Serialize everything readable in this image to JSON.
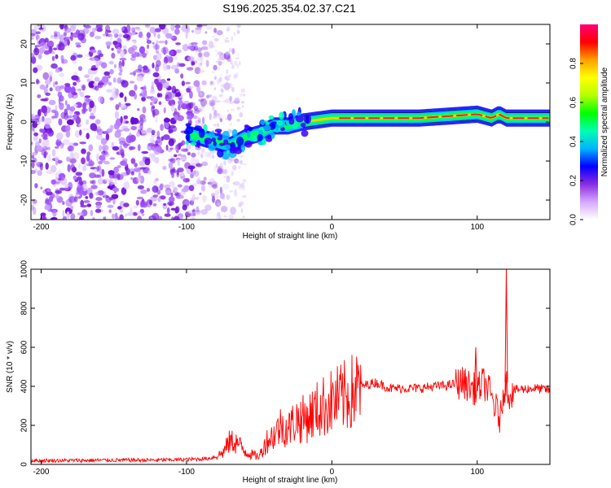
{
  "title": "S196.2025.354.02.37.C21",
  "chart_data": [
    {
      "type": "heatmap",
      "title": "S196.2025.354.02.37.C21",
      "xlabel": "Height of straight line (km)",
      "ylabel": "Frequency (Hz)",
      "xlim": [
        -207,
        150
      ],
      "ylim": [
        -25,
        25
      ],
      "xticks": [
        -200,
        -100,
        0,
        100
      ],
      "yticks": [
        -20,
        -10,
        0,
        10,
        20
      ],
      "colorbar": {
        "label": "Normalized spectral amplitude",
        "range": [
          0,
          1
        ],
        "ticks": [
          "0.0",
          "0.2",
          "0.4",
          "0.6",
          "0.8"
        ],
        "colors": [
          "#ffffff",
          "#d5a8ff",
          "#8a2be2",
          "#0000ff",
          "#00b4ff",
          "#00ffb0",
          "#00ff00",
          "#b4ff00",
          "#ffff00",
          "#ffa000",
          "#ff0000",
          "#ff0078"
        ]
      },
      "signal_track": {
        "x": [
          -100,
          -90,
          -80,
          -70,
          -60,
          -50,
          -40,
          -30,
          -20,
          -10,
          0,
          20,
          40,
          60,
          80,
          100,
          110,
          115,
          120,
          150
        ],
        "y": [
          -3,
          -4,
          -5,
          -6,
          -4,
          -3,
          -1,
          -1,
          0,
          0.5,
          1,
          1,
          1,
          1,
          1.5,
          2,
          1,
          2,
          1,
          1
        ]
      }
    },
    {
      "type": "line",
      "xlabel": "Height of straight line (km)",
      "ylabel": "SNR (10 * v/v)",
      "xlim": [
        -207,
        150
      ],
      "ylim": [
        0,
        1000
      ],
      "xticks": [
        -200,
        -100,
        0,
        100
      ],
      "yticks": [
        0,
        200,
        400,
        600,
        800,
        1000
      ],
      "series": [
        {
          "name": "SNR",
          "color": "#ff0000",
          "x": [
            -207,
            -180,
            -150,
            -120,
            -100,
            -85,
            -80,
            -75,
            -70,
            -65,
            -60,
            -55,
            -50,
            -45,
            -40,
            -35,
            -30,
            -25,
            -20,
            -15,
            -10,
            -5,
            0,
            10,
            20,
            30,
            40,
            50,
            60,
            70,
            80,
            90,
            95,
            100,
            104,
            108,
            112,
            116,
            118,
            120,
            122,
            125,
            130,
            140,
            150
          ],
          "y": [
            20,
            20,
            22,
            22,
            25,
            30,
            40,
            60,
            120,
            110,
            70,
            50,
            40,
            120,
            150,
            200,
            180,
            230,
            230,
            250,
            280,
            300,
            320,
            350,
            400,
            420,
            390,
            390,
            390,
            400,
            405,
            420,
            400,
            380,
            420,
            380,
            300,
            230,
            380,
            420,
            360,
            380,
            385,
            390,
            380
          ]
        }
      ],
      "annotations": [
        {
          "x": 99,
          "y": 600
        },
        {
          "x": 120,
          "y": 1000
        }
      ]
    }
  ]
}
